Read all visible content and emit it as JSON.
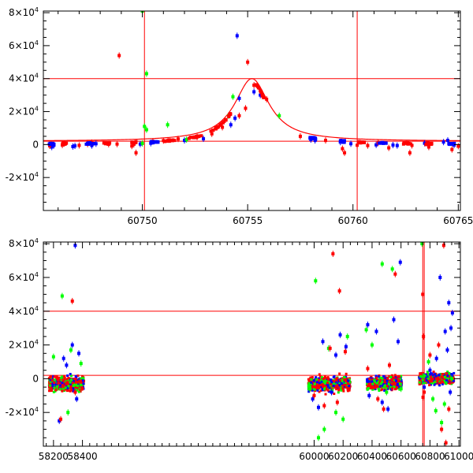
{
  "chart_data": [
    {
      "type": "scatter",
      "title": "",
      "xlabel": "",
      "ylabel": "",
      "xlim": [
        60745.3,
        60765.1
      ],
      "ylim": [
        -40000,
        81000
      ],
      "x_ticks": [
        60750,
        60755,
        60760,
        60765
      ],
      "x_tick_labels": [
        "60750",
        "60755",
        "60760",
        "60765"
      ],
      "y_ticks": [
        -20000,
        0,
        20000,
        40000,
        60000,
        80000
      ],
      "y_tick_labels": [
        {
          "mant": "-2×10",
          "exp": "4"
        },
        {
          "mant": "0",
          "exp": ""
        },
        {
          "mant": "2×10",
          "exp": "4"
        },
        {
          "mant": "4×10",
          "exp": "4"
        },
        {
          "mant": "6×10",
          "exp": "4"
        },
        {
          "mant": "8×10",
          "exp": "4"
        }
      ],
      "reference_lines": {
        "horizontal": [
          2000,
          40000
        ],
        "vertical": [
          60750.1,
          60760.2
        ],
        "color": "#ff0000"
      },
      "model_curve": {
        "type": "lorentzian",
        "peak_x": 60755.2,
        "peak_y": 40000,
        "baseline": 2000,
        "width": 1.0,
        "color": "#ff0000"
      },
      "series": [
        {
          "name": "blue",
          "color": "#0000ff",
          "points": [
            [
              60745.7,
              -1500
            ],
            [
              60745.8,
              -500
            ],
            [
              60746.7,
              -1200
            ],
            [
              60746.8,
              -800
            ],
            [
              60747.6,
              -600
            ],
            [
              60747.8,
              500
            ],
            [
              60749.9,
              300
            ],
            [
              60750.4,
              800
            ],
            [
              60752.0,
              2500
            ],
            [
              60752.9,
              3500
            ],
            [
              60754.2,
              12000
            ],
            [
              60754.4,
              16000
            ],
            [
              60754.6,
              28000
            ],
            [
              60754.5,
              66000
            ],
            [
              60755.3,
              32000
            ],
            [
              60755.6,
              30000
            ],
            [
              60758.0,
              3000
            ],
            [
              60758.2,
              2500
            ],
            [
              60759.4,
              1500
            ],
            [
              60759.9,
              500
            ],
            [
              60761.1,
              -200
            ],
            [
              60761.9,
              -300
            ],
            [
              60762.1,
              -600
            ],
            [
              60763.4,
              800
            ],
            [
              60764.3,
              1500
            ],
            [
              60764.5,
              2500
            ],
            [
              60764.8,
              -300
            ]
          ]
        },
        {
          "name": "green",
          "color": "#00ff00",
          "points": [
            [
              60750.0,
              81000
            ],
            [
              60750.2,
              43000
            ],
            [
              60750.1,
              11000
            ],
            [
              60750.2,
              9000
            ],
            [
              60750.0,
              700
            ],
            [
              60751.2,
              12000
            ],
            [
              60752.1,
              3000
            ],
            [
              60754.1,
              17500
            ],
            [
              60754.3,
              29000
            ],
            [
              60756.5,
              17500
            ]
          ]
        },
        {
          "name": "red",
          "color": "#ff0000",
          "points": [
            [
              60745.6,
              -800
            ],
            [
              60746.2,
              -300
            ],
            [
              60746.3,
              600
            ],
            [
              60747.0,
              -500
            ],
            [
              60747.4,
              300
            ],
            [
              60747.6,
              1200
            ],
            [
              60748.4,
              200
            ],
            [
              60748.8,
              300
            ],
            [
              60748.9,
              54000
            ],
            [
              60749.5,
              -900
            ],
            [
              60749.6,
              200
            ],
            [
              60749.7,
              -5000
            ],
            [
              60750.5,
              2000
            ],
            [
              60751.0,
              2400
            ],
            [
              60751.7,
              3400
            ],
            [
              60752.6,
              4600
            ],
            [
              60753.3,
              6500
            ],
            [
              60753.8,
              10500
            ],
            [
              60754.6,
              17500
            ],
            [
              60754.9,
              22000
            ],
            [
              60755.0,
              50000
            ],
            [
              60755.3,
              36000
            ],
            [
              60755.7,
              29500
            ],
            [
              60755.9,
              27500
            ],
            [
              60757.5,
              5000
            ],
            [
              60758.7,
              2500
            ],
            [
              60759.5,
              -2500
            ],
            [
              60759.6,
              -5000
            ],
            [
              60760.2,
              -400
            ],
            [
              60760.7,
              -600
            ],
            [
              60761.2,
              1000
            ],
            [
              60761.7,
              -2000
            ],
            [
              60762.7,
              -5000
            ],
            [
              60762.8,
              -500
            ],
            [
              60763.6,
              -1500
            ],
            [
              60764.7,
              -3000
            ],
            [
              60765.0,
              -1000
            ]
          ]
        }
      ]
    },
    {
      "type": "scatter",
      "title": "",
      "xlabel": "",
      "ylabel": "",
      "xlim": [
        58130,
        61010
      ],
      "ylim": [
        -40000,
        81000
      ],
      "x_ticks": [
        58200,
        58400,
        60000,
        60200,
        60400,
        60600,
        60800,
        61000
      ],
      "x_tick_labels": [
        "58200",
        "58400",
        "60000",
        "60200",
        "60400",
        "60600",
        "60800",
        "61000"
      ],
      "y_ticks": [
        -20000,
        0,
        20000,
        40000,
        60000,
        80000
      ],
      "y_tick_labels": [
        {
          "mant": "-2×10",
          "exp": "4"
        },
        {
          "mant": "0",
          "exp": ""
        },
        {
          "mant": "2×10",
          "exp": "4"
        },
        {
          "mant": "4×10",
          "exp": "4"
        },
        {
          "mant": "6×10",
          "exp": "4"
        },
        {
          "mant": "8×10",
          "exp": "4"
        }
      ],
      "segments": [
        {
          "x_range": [
            58170,
            58410
          ]
        },
        {
          "x_range": [
            59960,
            60250
          ]
        },
        {
          "x_range": [
            60365,
            60605
          ]
        },
        {
          "x_range": [
            60725,
            60965
          ]
        }
      ],
      "reference_lines": {
        "horizontal": [
          2000,
          40000
        ],
        "vertical": [
          60750.1,
          60760.2
        ],
        "color": "#ff0000"
      },
      "dense_bands": [
        {
          "x_range": [
            58170,
            58410
          ],
          "center": -3000,
          "spread": 4500
        },
        {
          "x_range": [
            59960,
            60250
          ],
          "center": -3000,
          "spread": 4500
        },
        {
          "x_range": [
            60365,
            60605
          ],
          "center": -2500,
          "spread": 4000
        },
        {
          "x_range": [
            60725,
            60965
          ],
          "center": 0,
          "spread": 3500
        }
      ],
      "series": [
        {
          "name": "blue",
          "color": "#0000ff",
          "points": [
            [
              58240,
              -25000
            ],
            [
              58270,
              12000
            ],
            [
              58290,
              8000
            ],
            [
              58330,
              20000
            ],
            [
              58350,
              79000
            ],
            [
              58360,
              -12000
            ],
            [
              58375,
              15000
            ],
            [
              59990,
              -12000
            ],
            [
              60030,
              -17000
            ],
            [
              60060,
              22000
            ],
            [
              60120,
              -8000
            ],
            [
              60150,
              14000
            ],
            [
              60180,
              26000
            ],
            [
              60220,
              19000
            ],
            [
              60370,
              32000
            ],
            [
              60380,
              -10000
            ],
            [
              60430,
              28000
            ],
            [
              60470,
              -14000
            ],
            [
              60510,
              -18000
            ],
            [
              60550,
              35000
            ],
            [
              60580,
              22000
            ],
            [
              60595,
              69000
            ],
            [
              60760,
              -5000
            ],
            [
              60800,
              5000
            ],
            [
              60845,
              12000
            ],
            [
              60870,
              60000
            ],
            [
              60905,
              28000
            ],
            [
              60920,
              17000
            ],
            [
              60930,
              45000
            ],
            [
              60940,
              -8000
            ],
            [
              60955,
              39000
            ],
            [
              60945,
              30000
            ]
          ]
        },
        {
          "name": "green",
          "color": "#00ff00",
          "points": [
            [
              58200,
              13000
            ],
            [
              58260,
              49000
            ],
            [
              58300,
              -20000
            ],
            [
              58320,
              17000
            ],
            [
              58390,
              9000
            ],
            [
              59970,
              -6000
            ],
            [
              60010,
              58000
            ],
            [
              60030,
              -35000
            ],
            [
              60070,
              -30000
            ],
            [
              60100,
              18000
            ],
            [
              60150,
              -20000
            ],
            [
              60200,
              -24000
            ],
            [
              60230,
              25000
            ],
            [
              60360,
              29000
            ],
            [
              60400,
              20000
            ],
            [
              60470,
              68000
            ],
            [
              60500,
              -8000
            ],
            [
              60540,
              65000
            ],
            [
              60600,
              -6000
            ],
            [
              60745,
              80000
            ],
            [
              60790,
              10000
            ],
            [
              60820,
              -12000
            ],
            [
              60840,
              -19000
            ],
            [
              60880,
              -26000
            ],
            [
              60900,
              -15000
            ],
            [
              60950,
              0
            ]
          ]
        },
        {
          "name": "red",
          "color": "#ff0000",
          "points": [
            [
              58250,
              -24000
            ],
            [
              58330,
              46000
            ],
            [
              58350,
              -8000
            ],
            [
              60000,
              -10000
            ],
            [
              60070,
              -16000
            ],
            [
              60110,
              18000
            ],
            [
              60130,
              74000
            ],
            [
              60160,
              -14000
            ],
            [
              60175,
              52000
            ],
            [
              60215,
              16000
            ],
            [
              60370,
              6000
            ],
            [
              60440,
              -12000
            ],
            [
              60480,
              -18000
            ],
            [
              60520,
              8000
            ],
            [
              60560,
              62000
            ],
            [
              60750,
              50000
            ],
            [
              60752,
              -11000
            ],
            [
              60755,
              25000
            ],
            [
              60760,
              -8000
            ],
            [
              60800,
              14000
            ],
            [
              60860,
              20000
            ],
            [
              60880,
              -30000
            ],
            [
              60895,
              79000
            ],
            [
              60910,
              -38000
            ],
            [
              60930,
              -18000
            ]
          ]
        }
      ]
    }
  ]
}
